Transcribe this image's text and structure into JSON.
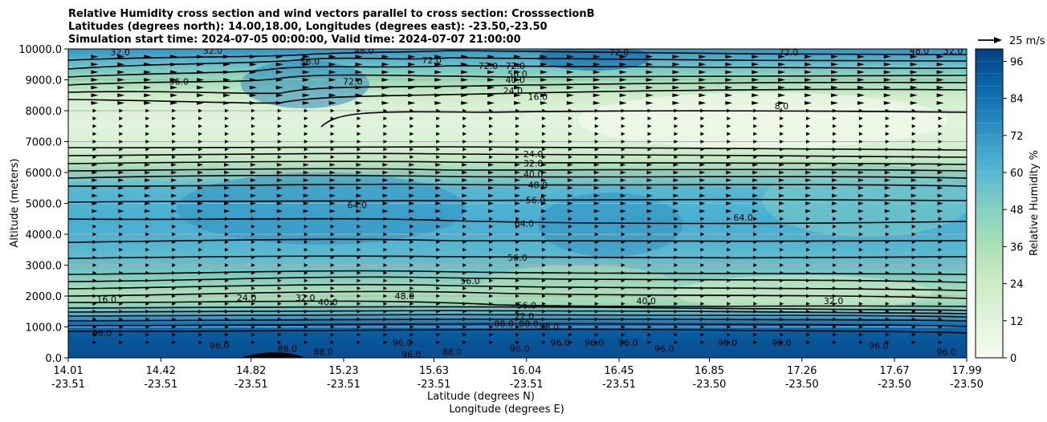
{
  "chart_data": {
    "type": "heatmap",
    "title_lines": [
      "Relative Humidity cross section and wind vectors parallel to cross section: CrosssectionB",
      "Latitudes (degrees north): 14.00,18.00, Longitudes (degrees east): -23.50,-23.50",
      "Simulation start time: 2024-07-05 00:00:00, Valid time: 2024-07-07 21:00:00"
    ],
    "ylabel": "Altitude (meters)",
    "xlabel_line1": "Latitude (degrees N)",
    "xlabel_line2": "Longitude (degrees E)",
    "ylim": [
      0,
      10000
    ],
    "y_ticks": [
      {
        "value": 0,
        "label": "0.0"
      },
      {
        "value": 1000,
        "label": "1000.0"
      },
      {
        "value": 2000,
        "label": "2000.0"
      },
      {
        "value": 3000,
        "label": "3000.0"
      },
      {
        "value": 4000,
        "label": "4000.0"
      },
      {
        "value": 5000,
        "label": "5000.0"
      },
      {
        "value": 6000,
        "label": "6000.0"
      },
      {
        "value": 7000,
        "label": "7000.0"
      },
      {
        "value": 8000,
        "label": "8000.0"
      },
      {
        "value": 9000,
        "label": "9000.0"
      },
      {
        "value": 10000,
        "label": "10000.0"
      }
    ],
    "x_ticks": [
      {
        "lat": 14.01,
        "lat_label": "14.01",
        "lon_label": "-23.51"
      },
      {
        "lat": 14.42,
        "lat_label": "14.42",
        "lon_label": "-23.51"
      },
      {
        "lat": 14.82,
        "lat_label": "14.82",
        "lon_label": "-23.51"
      },
      {
        "lat": 15.23,
        "lat_label": "15.23",
        "lon_label": "-23.51"
      },
      {
        "lat": 15.63,
        "lat_label": "15.63",
        "lon_label": "-23.51"
      },
      {
        "lat": 16.04,
        "lat_label": "16.04",
        "lon_label": "-23.51"
      },
      {
        "lat": 16.45,
        "lat_label": "16.45",
        "lon_label": "-23.51"
      },
      {
        "lat": 16.85,
        "lat_label": "16.85",
        "lon_label": "-23.50"
      },
      {
        "lat": 17.26,
        "lat_label": "17.26",
        "lon_label": "-23.50"
      },
      {
        "lat": 17.67,
        "lat_label": "17.67",
        "lon_label": "-23.50"
      },
      {
        "lat": 17.99,
        "lat_label": "17.99",
        "lon_label": "-23.50"
      }
    ],
    "xlim": [
      14.01,
      17.99
    ],
    "grid": "horizontal",
    "colorbar": {
      "label": "Relative Humidity %",
      "range": [
        0,
        100
      ],
      "ticks": [
        0,
        12,
        24,
        36,
        48,
        60,
        72,
        84,
        96
      ],
      "level_step": 4
    },
    "quiver_key": {
      "label": "25 m/s",
      "speed": 25
    },
    "colormap_stops": [
      "#f7fcf0",
      "#e0f3db",
      "#ccebc5",
      "#a8ddb5",
      "#7bccc4",
      "#4eb3d3",
      "#2b8cbe",
      "#0868ac",
      "#084081"
    ],
    "rh_profile": [
      {
        "alt": 0,
        "rh": 95
      },
      {
        "alt": 400,
        "rh": 94
      },
      {
        "alt": 800,
        "rh": 91
      },
      {
        "alt": 1100,
        "rh": 84
      },
      {
        "alt": 1300,
        "rh": 70
      },
      {
        "alt": 1500,
        "rh": 56
      },
      {
        "alt": 1800,
        "rh": 40
      },
      {
        "alt": 2100,
        "rh": 36
      },
      {
        "alt": 2500,
        "rh": 46
      },
      {
        "alt": 3000,
        "rh": 56
      },
      {
        "alt": 3500,
        "rh": 60
      },
      {
        "alt": 4000,
        "rh": 63
      },
      {
        "alt": 4500,
        "rh": 64
      },
      {
        "alt": 5000,
        "rh": 62
      },
      {
        "alt": 5500,
        "rh": 60
      },
      {
        "alt": 6000,
        "rh": 44
      },
      {
        "alt": 6400,
        "rh": 28
      },
      {
        "alt": 7000,
        "rh": 16
      },
      {
        "alt": 7500,
        "rh": 12
      },
      {
        "alt": 8000,
        "rh": 14
      },
      {
        "alt": 8500,
        "rh": 24
      },
      {
        "alt": 9000,
        "rh": 40
      },
      {
        "alt": 9500,
        "rh": 56
      },
      {
        "alt": 10000,
        "rh": 72
      }
    ],
    "contour_labels": [
      {
        "text": "32.0",
        "lat": 14.24,
        "alt": 9900
      },
      {
        "text": "32.0",
        "lat": 14.65,
        "alt": 9950
      },
      {
        "text": "48.0",
        "lat": 15.32,
        "alt": 9950
      },
      {
        "text": "56.0",
        "lat": 15.08,
        "alt": 9600
      },
      {
        "text": "72.0",
        "lat": 15.62,
        "alt": 9640
      },
      {
        "text": "72.0",
        "lat": 15.87,
        "alt": 9450
      },
      {
        "text": "72.0",
        "lat": 15.99,
        "alt": 9450
      },
      {
        "text": "56.0",
        "lat": 16.0,
        "alt": 9200
      },
      {
        "text": "40.0",
        "lat": 15.99,
        "alt": 9000
      },
      {
        "text": "24.0",
        "lat": 15.98,
        "alt": 8650
      },
      {
        "text": "16.0",
        "lat": 16.09,
        "alt": 8450
      },
      {
        "text": "56.0",
        "lat": 14.5,
        "alt": 8950
      },
      {
        "text": "72.0",
        "lat": 15.27,
        "alt": 8950
      },
      {
        "text": "72.0",
        "lat": 16.45,
        "alt": 9900
      },
      {
        "text": "72.0",
        "lat": 17.2,
        "alt": 9900
      },
      {
        "text": "48.0",
        "lat": 17.78,
        "alt": 9950
      },
      {
        "text": "32.0",
        "lat": 17.93,
        "alt": 9950
      },
      {
        "text": "8.0",
        "lat": 17.17,
        "alt": 8150
      },
      {
        "text": "24.0",
        "lat": 16.07,
        "alt": 6600
      },
      {
        "text": "32.0",
        "lat": 16.07,
        "alt": 6300
      },
      {
        "text": "40.0",
        "lat": 16.07,
        "alt": 5950
      },
      {
        "text": "48.0",
        "lat": 16.09,
        "alt": 5600
      },
      {
        "text": "56.0",
        "lat": 16.08,
        "alt": 5100
      },
      {
        "text": "64.0",
        "lat": 15.29,
        "alt": 4950
      },
      {
        "text": "64.0",
        "lat": 16.03,
        "alt": 4350
      },
      {
        "text": "64.0",
        "lat": 17.0,
        "alt": 4550
      },
      {
        "text": "56.0",
        "lat": 16.0,
        "alt": 3250
      },
      {
        "text": "56.0",
        "lat": 15.79,
        "alt": 2500
      },
      {
        "text": "16.0",
        "lat": 14.18,
        "alt": 1900
      },
      {
        "text": "24.0",
        "lat": 14.8,
        "alt": 1950
      },
      {
        "text": "32.0",
        "lat": 15.06,
        "alt": 1950
      },
      {
        "text": "40.0",
        "lat": 15.16,
        "alt": 1800
      },
      {
        "text": "48.0",
        "lat": 15.5,
        "alt": 2000
      },
      {
        "text": "40.0",
        "lat": 16.57,
        "alt": 1850
      },
      {
        "text": "32.0",
        "lat": 17.4,
        "alt": 1850
      },
      {
        "text": "56.0",
        "lat": 16.04,
        "alt": 1700
      },
      {
        "text": "72.0",
        "lat": 16.03,
        "alt": 1350
      },
      {
        "text": "88.0",
        "lat": 15.94,
        "alt": 1100
      },
      {
        "text": "88.0",
        "lat": 16.05,
        "alt": 1100
      },
      {
        "text": "88.0",
        "lat": 16.14,
        "alt": 1000
      },
      {
        "text": "96.0",
        "lat": 14.16,
        "alt": 800
      },
      {
        "text": "96.0",
        "lat": 14.68,
        "alt": 400
      },
      {
        "text": "88.0",
        "lat": 14.98,
        "alt": 300
      },
      {
        "text": "88.0",
        "lat": 15.14,
        "alt": 200
      },
      {
        "text": "96.0",
        "lat": 15.49,
        "alt": 500
      },
      {
        "text": "96.0",
        "lat": 15.53,
        "alt": 100
      },
      {
        "text": "88.0",
        "lat": 15.71,
        "alt": 200
      },
      {
        "text": "96.0",
        "lat": 16.01,
        "alt": 300
      },
      {
        "text": "96.0",
        "lat": 16.19,
        "alt": 500
      },
      {
        "text": "96.0",
        "lat": 16.34,
        "alt": 500
      },
      {
        "text": "96.0",
        "lat": 16.49,
        "alt": 500
      },
      {
        "text": "96.0",
        "lat": 16.65,
        "alt": 300
      },
      {
        "text": "96.0",
        "lat": 16.93,
        "alt": 500
      },
      {
        "text": "96.0",
        "lat": 17.17,
        "alt": 500
      },
      {
        "text": "96.0",
        "lat": 17.6,
        "alt": 400
      },
      {
        "text": "96.0",
        "lat": 17.9,
        "alt": 200
      }
    ]
  }
}
